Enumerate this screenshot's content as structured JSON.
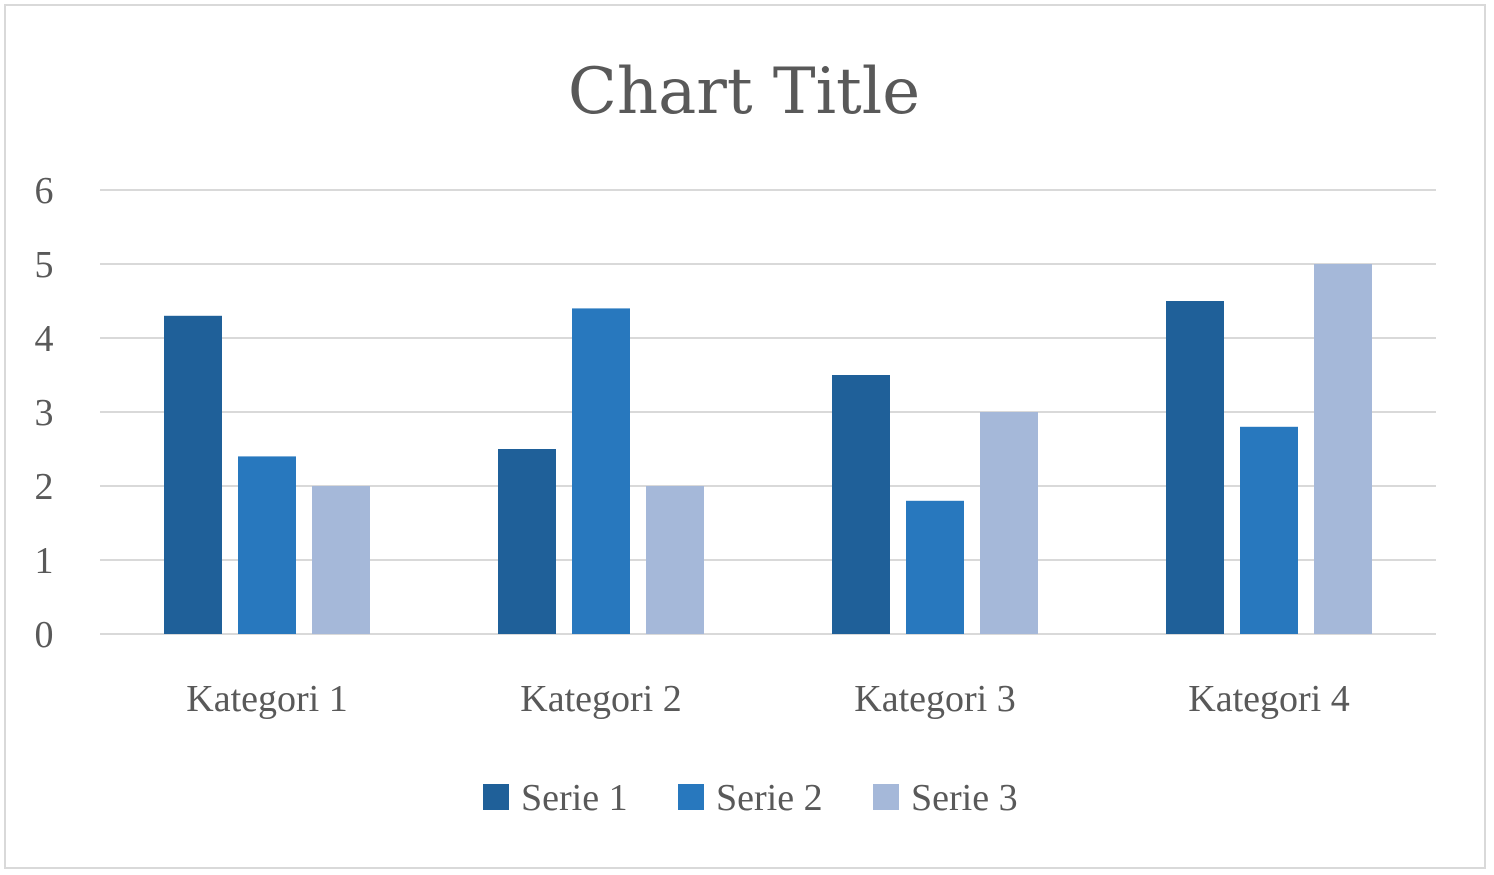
{
  "chart_data": {
    "type": "bar",
    "title": "Chart Title",
    "xlabel": "",
    "ylabel": "",
    "ylim": [
      0,
      6
    ],
    "yticks": [
      "0",
      "1",
      "2",
      "3",
      "4",
      "5",
      "6"
    ],
    "grid": true,
    "legend_position": "bottom",
    "categories": [
      "Kategori 1",
      "Kategori 2",
      "Kategori 3",
      "Kategori 4"
    ],
    "series": [
      {
        "name": "Serie 1",
        "color": "#1f6099",
        "values": [
          4.3,
          2.5,
          3.5,
          4.5
        ]
      },
      {
        "name": "Serie 2",
        "color": "#2878be",
        "values": [
          2.4,
          4.4,
          1.8,
          2.8
        ]
      },
      {
        "name": "Serie 3",
        "color": "#a5b8d9",
        "values": [
          2.0,
          2.0,
          3.0,
          5.0
        ]
      }
    ]
  }
}
